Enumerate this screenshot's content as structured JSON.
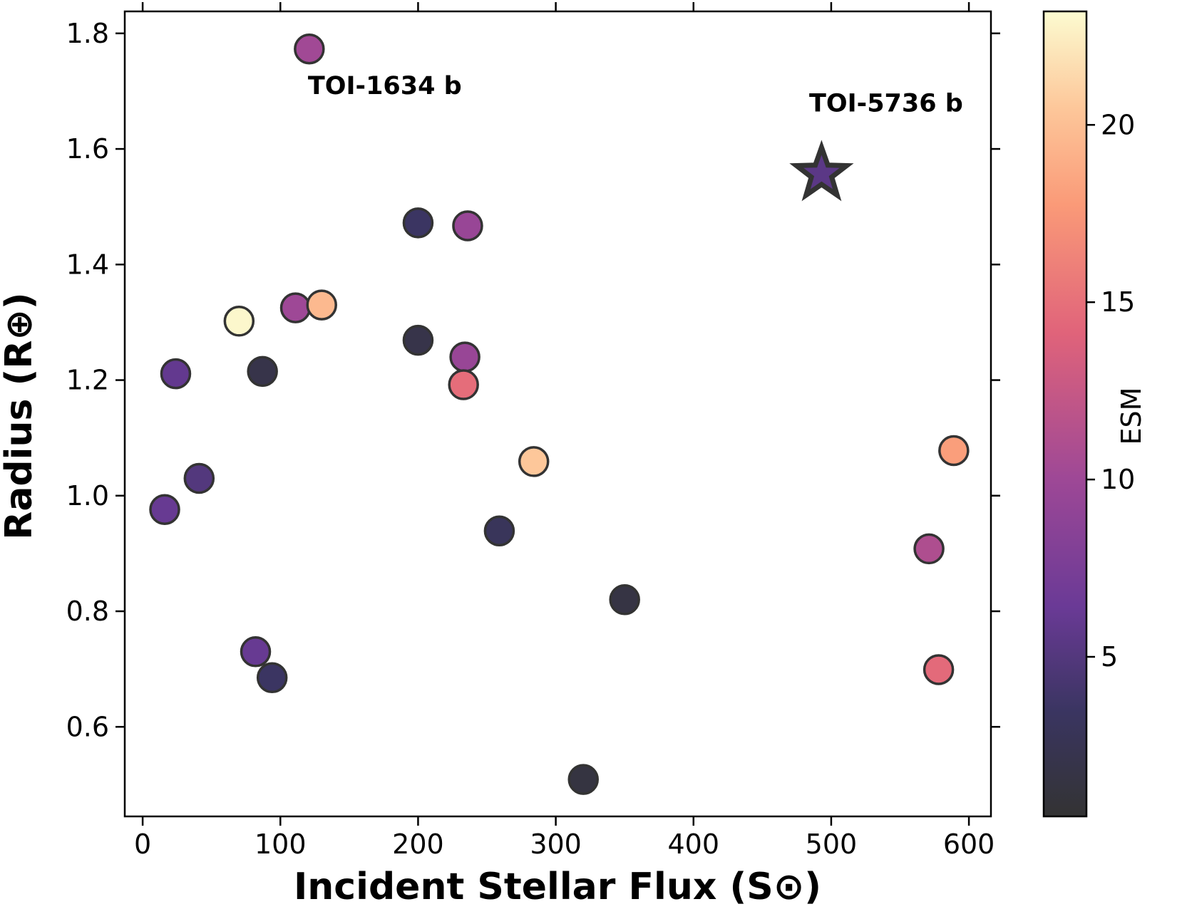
{
  "chart_data": {
    "type": "scatter",
    "xlabel": "Incident Stellar Flux (S⊙)",
    "ylabel": "Radius (R⊕)",
    "xlim": [
      -13,
      616
    ],
    "ylim": [
      0.445,
      1.838
    ],
    "x_ticks": [
      0,
      100,
      200,
      300,
      400,
      500,
      600
    ],
    "y_ticks": [
      0.6,
      0.8,
      1.0,
      1.2,
      1.4,
      1.6,
      1.8
    ],
    "x_tick_labels": [
      "0",
      "100",
      "200",
      "300",
      "400",
      "500",
      "600"
    ],
    "y_tick_labels": [
      "0.6",
      "0.8",
      "1.0",
      "1.2",
      "1.4",
      "1.6",
      "1.8"
    ],
    "grid": false,
    "colorbar": {
      "label": "ESM",
      "range": [
        0.5,
        23.2
      ],
      "ticks": [
        5,
        10,
        15,
        20
      ],
      "tick_labels": [
        "5",
        "10",
        "15",
        "20"
      ],
      "colormap": "magma"
    },
    "points": [
      {
        "x": 121,
        "y": 1.773,
        "esm": 10.2
      },
      {
        "x": 70,
        "y": 1.302,
        "esm": 23.0
      },
      {
        "x": 111,
        "y": 1.325,
        "esm": 10.0
      },
      {
        "x": 130,
        "y": 1.33,
        "esm": 19.6
      },
      {
        "x": 24,
        "y": 1.211,
        "esm": 6.0
      },
      {
        "x": 87,
        "y": 1.215,
        "esm": 2.0
      },
      {
        "x": 41,
        "y": 1.03,
        "esm": 5.0
      },
      {
        "x": 16,
        "y": 0.976,
        "esm": 6.2
      },
      {
        "x": 82,
        "y": 0.73,
        "esm": 6.2
      },
      {
        "x": 94,
        "y": 0.685,
        "esm": 3.5
      },
      {
        "x": 200,
        "y": 1.472,
        "esm": 3.5
      },
      {
        "x": 236,
        "y": 1.467,
        "esm": 9.6
      },
      {
        "x": 200,
        "y": 1.269,
        "esm": 2.0
      },
      {
        "x": 234,
        "y": 1.24,
        "esm": 9.6
      },
      {
        "x": 233,
        "y": 1.192,
        "esm": 14.8
      },
      {
        "x": 284,
        "y": 1.059,
        "esm": 20.5
      },
      {
        "x": 259,
        "y": 0.939,
        "esm": 3.0
      },
      {
        "x": 350,
        "y": 0.82,
        "esm": 1.6
      },
      {
        "x": 320,
        "y": 0.509,
        "esm": 1.4
      },
      {
        "x": 589,
        "y": 1.078,
        "esm": 18.0
      },
      {
        "x": 571,
        "y": 0.908,
        "esm": 11.0
      },
      {
        "x": 578,
        "y": 0.699,
        "esm": 14.6
      }
    ],
    "highlight": {
      "name": "TOI-5736 b",
      "x": 493,
      "y": 1.557,
      "esm": 5.5,
      "marker": "star"
    },
    "annotations": [
      {
        "text": "TOI-1634 b",
        "x": 120,
        "y": 1.695
      },
      {
        "text": "TOI-5736 b",
        "x": 484,
        "y": 1.665
      }
    ]
  }
}
